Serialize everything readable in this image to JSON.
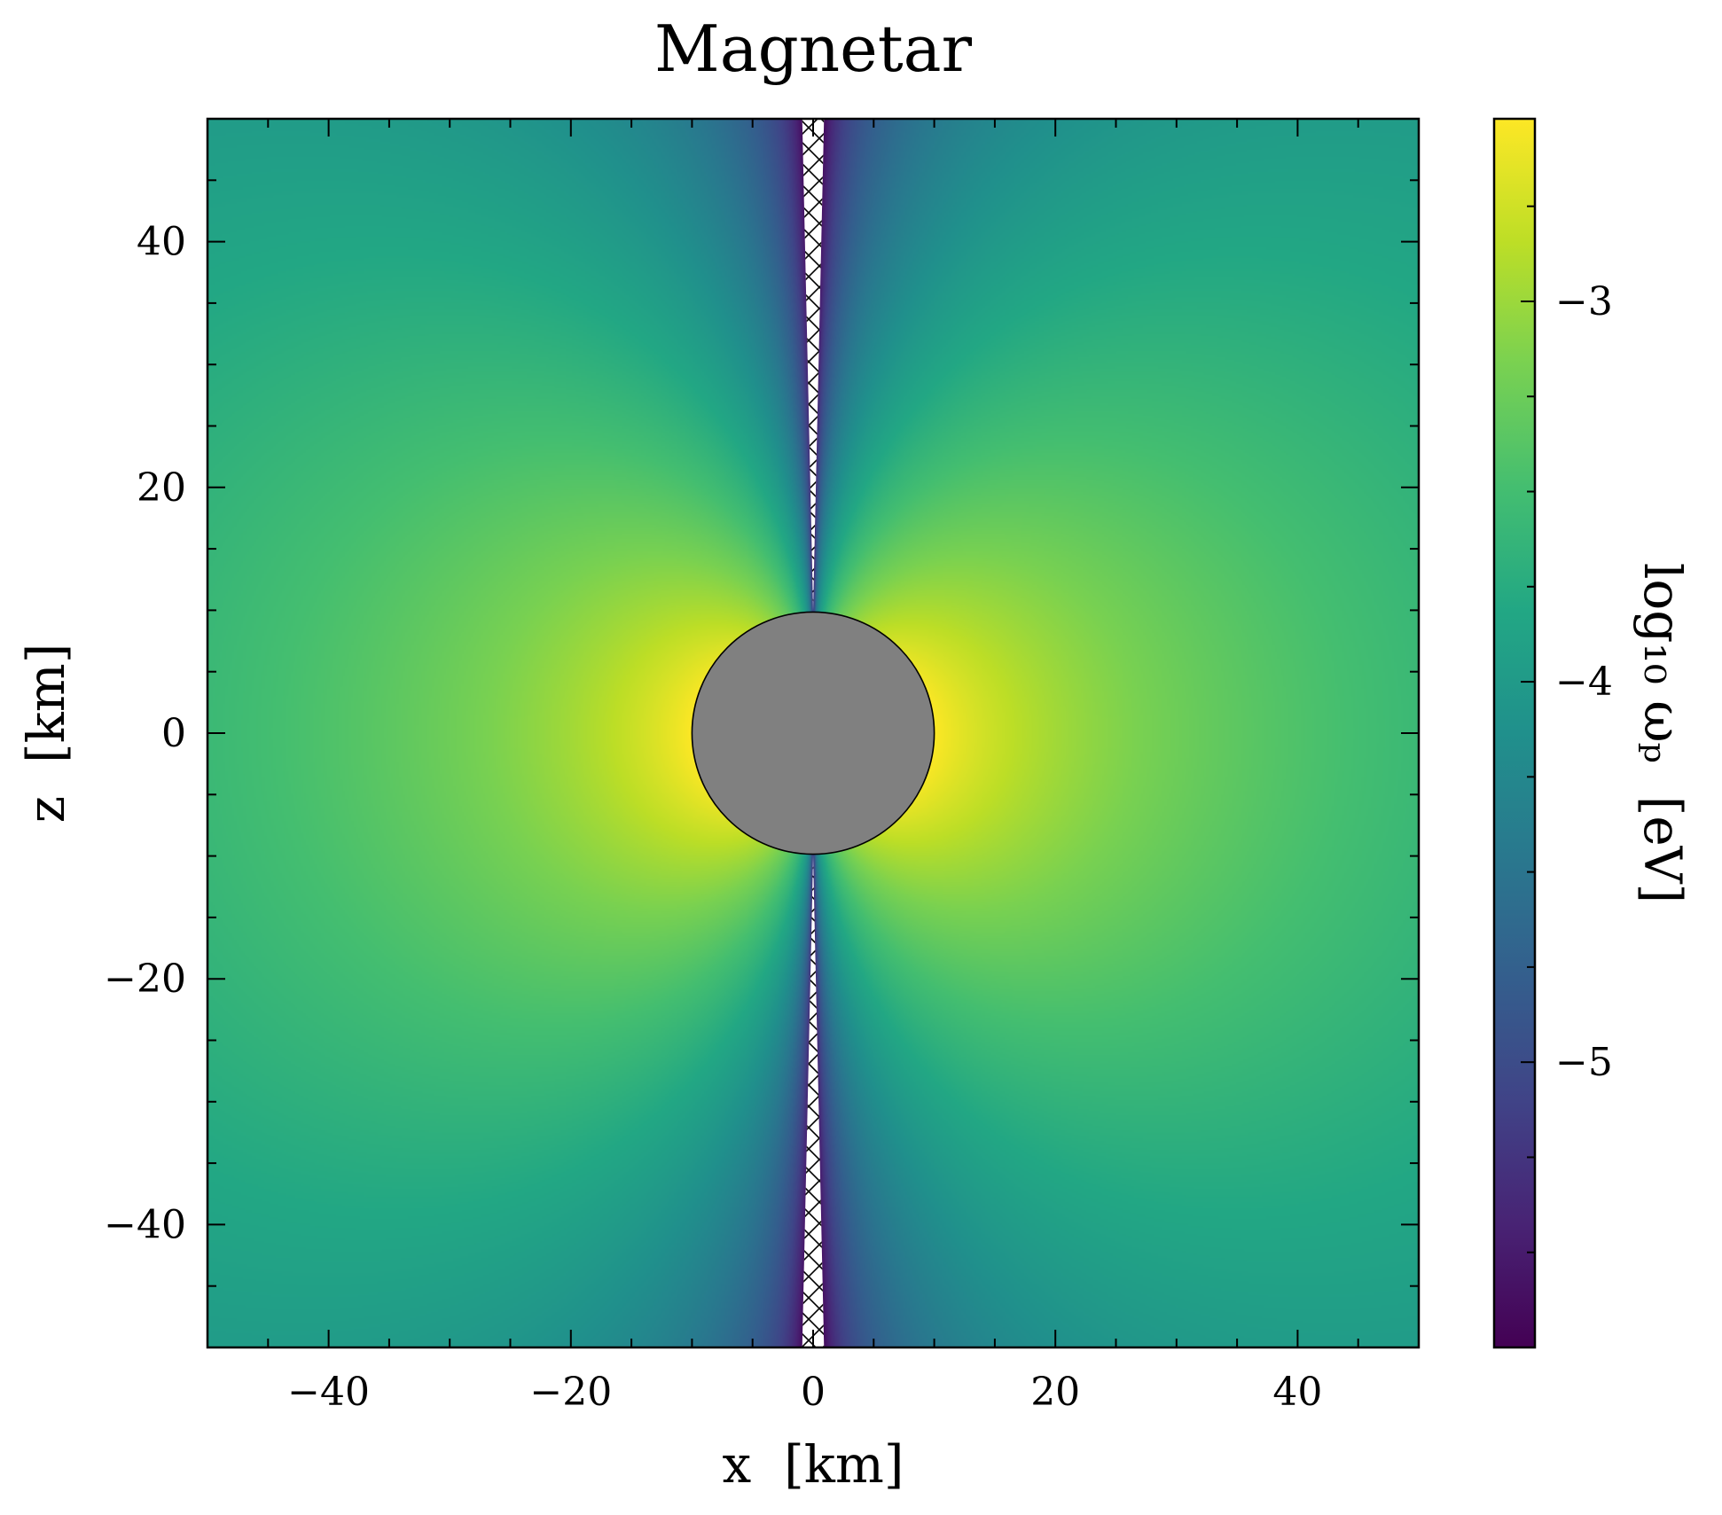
{
  "chart_data": {
    "type": "heatmap",
    "title": "Magnetar",
    "xlabel": "x  [km]",
    "ylabel": "z  [km]",
    "xlim": [
      -50,
      50
    ],
    "ylim": [
      -50,
      50
    ],
    "xticks": [
      -40,
      -20,
      0,
      20,
      40
    ],
    "yticks": [
      -40,
      -20,
      0,
      20,
      40
    ],
    "xtick_labels": [
      "−40",
      "−20",
      "0",
      "20",
      "40"
    ],
    "ytick_labels": [
      "−40",
      "−20",
      "0",
      "20",
      "40"
    ],
    "colorbar": {
      "label": "log₁₀ ωₚ  [eV]",
      "range": [
        -5.75,
        -2.52
      ],
      "ticks": [
        -5,
        -4,
        -3
      ],
      "tick_labels": [
        "−5",
        "−4",
        "−3"
      ],
      "colormap": "viridis"
    },
    "star": {
      "center": [
        0,
        0
      ],
      "radius_km": 10,
      "color": "#808080"
    },
    "field": {
      "description": "log10 plasma frequency around star, dipole-like: peak at equator near surface, minimum along z-axis",
      "model": "log10wp = -2.52 - 1.5*log10(r/10) + 1.2*log10(sin(theta))"
    },
    "excluded_region": {
      "description": "hatched wedge along z-axis",
      "hatch": "x"
    },
    "grid": false,
    "legend": "none"
  }
}
